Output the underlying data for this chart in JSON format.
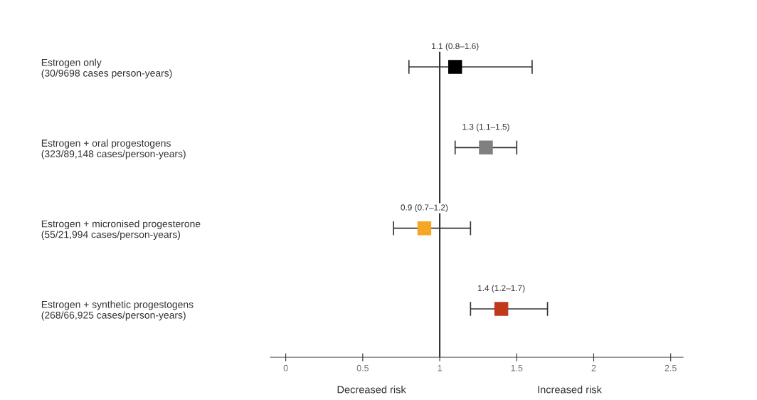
{
  "chart_data": {
    "type": "scatter",
    "orientation": "horizontal",
    "marker": "square",
    "categories": [
      "Estrogen only\n(30/9698 cases person-years)",
      "Estrogen + oral progestogens\n(323/89,148 cases/person-years)",
      "Estrogen + micronised progesterone\n(55/21,994 cases/person-years)",
      "Estrogen + synthetic progestogens\n(268/66,925 cases/person-years)"
    ],
    "values": [
      1.1,
      1.3,
      0.9,
      1.4
    ],
    "errors": [
      [
        0.8,
        1.6
      ],
      [
        1.1,
        1.5
      ],
      [
        0.7,
        1.2
      ],
      [
        1.2,
        1.7
      ]
    ],
    "colors": [
      "#000000",
      "#808080",
      "#f5a623",
      "#c0391b"
    ],
    "value_labels": [
      "1.1 (0.8–1.6)",
      "1.3 (1.1–1.5)",
      "0.9 (0.7–1.2)",
      "1.4 (1.2–1.7)"
    ],
    "xlim": [
      -0.1,
      2.58
    ],
    "xticks": [
      0,
      0.5,
      1,
      1.5,
      2,
      2.5
    ],
    "ref_lines": [
      {
        "axis": "x",
        "value": 1,
        "color": "#333333"
      }
    ],
    "annotations": [
      "Decreased risk",
      "Increased risk"
    ],
    "grid": false,
    "legend": false
  }
}
